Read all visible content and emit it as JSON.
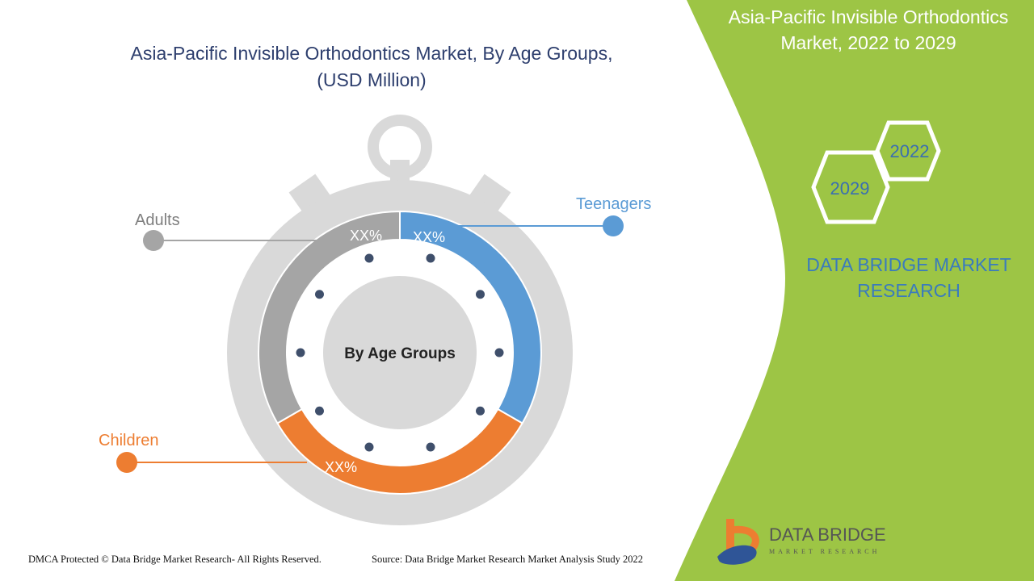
{
  "title": "Asia-Pacific Invisible Orthodontics Market, By Age Groups, (USD Million)",
  "side_panel": {
    "title": "Asia-Pacific Invisible Orthodontics Market, 2022 to 2029",
    "hex_years": [
      "2022",
      "2029"
    ],
    "brand_text": "DATA BRIDGE MARKET RESEARCH",
    "logo_text": "DATA BRIDGE MARKET RESEARCH",
    "color": "#9dc545"
  },
  "chart_data": {
    "type": "pie",
    "variant": "donut",
    "center_label": "By Age Groups",
    "segments": [
      {
        "name": "Teenagers",
        "label": "XX%",
        "color": "#5b9bd5"
      },
      {
        "name": "Children",
        "label": "XX%",
        "color": "#ed7d31"
      },
      {
        "name": "Adults",
        "label": "XX%",
        "color": "#a5a5a5"
      }
    ]
  },
  "footer": {
    "copyright": "DMCA Protected © Data Bridge Market Research- All Rights Reserved.",
    "source": "Source: Data Bridge Market Research Market Analysis Study 2022"
  }
}
